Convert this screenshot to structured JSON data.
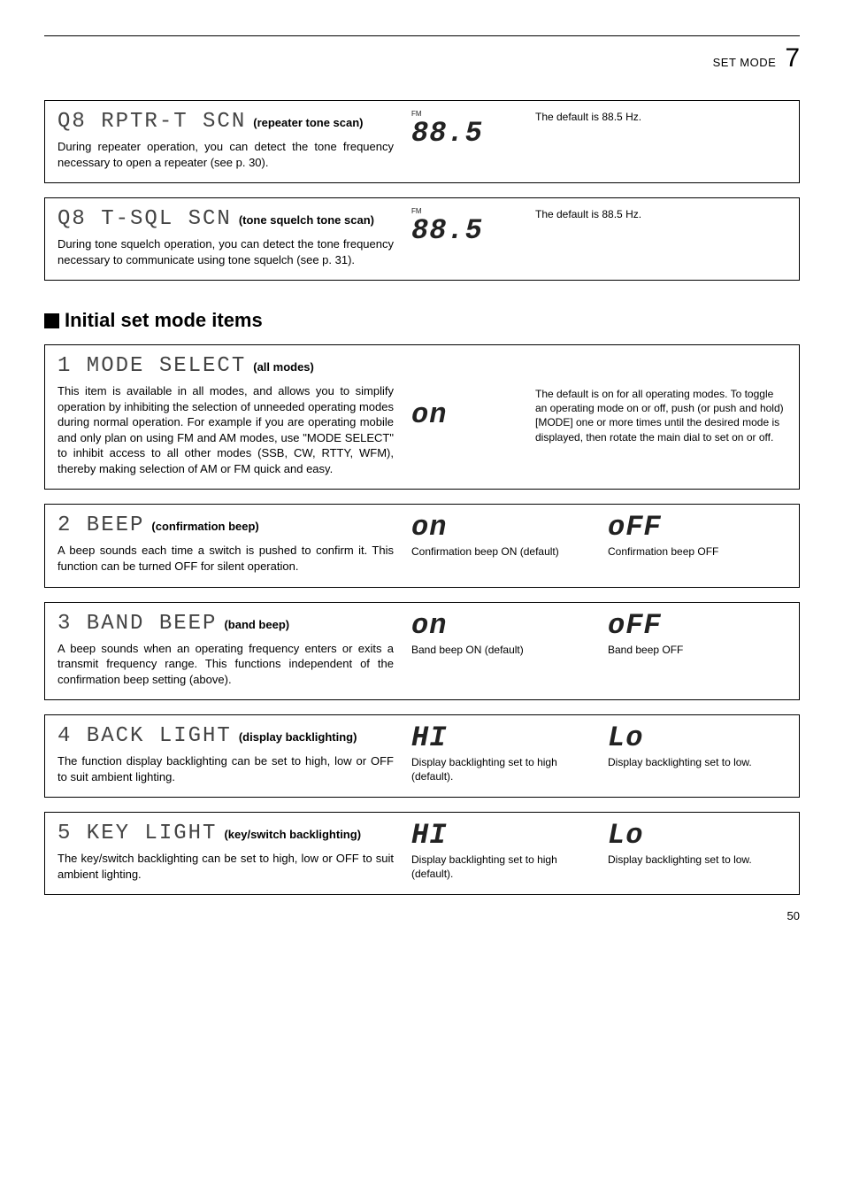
{
  "header": {
    "label": "SET MODE",
    "chapter": "7"
  },
  "section_title": "Initial set mode items",
  "items": [
    {
      "lcd": "Q8 RPTR-T SCN",
      "desc": "(repeater tone scan)",
      "body": "During repeater operation, you can detect the tone frequency necessary to open a repeater (see p. 30).",
      "disp_fm": "FM",
      "disp_value": "88.5",
      "note": "The default is 88.5 Hz."
    },
    {
      "lcd": "Q8 T-SQL SCN",
      "desc": "(tone squelch tone scan)",
      "body": "During tone squelch operation, you can detect the tone frequency necessary to communicate using tone squelch (see p. 31).",
      "disp_fm": "FM",
      "disp_value": "88.5",
      "note": "The default is 88.5 Hz."
    }
  ],
  "initial_items": [
    {
      "lcd": "1 MODE SELECT",
      "desc": "(all modes)",
      "body": "This item is available in all modes, and allows you to simplify operation by inhibiting the selection of unneeded operating modes during normal operation. For example if you are operating mobile and only plan on using FM and AM modes, use \"MODE SELECT\" to inhibit access to all other modes (SSB, CW, RTTY, WFM), thereby making selection of AM or FM quick and easy.",
      "disp1": "on",
      "note": "The default is on for all operating modes. To toggle an operating mode on or off, push (or push and hold) [MODE] one or more times until the desired mode is displayed, then rotate the main dial to set on or off."
    },
    {
      "lcd": "2 BEEP",
      "desc": "(confirmation beep)",
      "body": "A beep sounds each time a switch is pushed to confirm it. This function can be turned OFF for silent operation.",
      "disp1": "on",
      "cap1": "Confirmation beep ON (default)",
      "disp2": "oFF",
      "cap2": "Confirmation beep OFF"
    },
    {
      "lcd": "3 BAND BEEP",
      "desc": "(band beep)",
      "body": "A beep sounds when an operating frequency enters or exits a transmit frequency range. This functions independent of the confirmation beep setting (above).",
      "disp1": "on",
      "cap1": "Band beep ON (default)",
      "disp2": "oFF",
      "cap2": "Band beep OFF"
    },
    {
      "lcd": "4 BACK LIGHT",
      "desc": "(display backlighting)",
      "body": "The function display backlighting can be set to high, low or OFF to suit ambient lighting.",
      "disp1": "HI",
      "cap1": "Display backlighting set to high (default).",
      "disp2": "Lo",
      "cap2": "Display backlighting set to low."
    },
    {
      "lcd": "5 KEY LIGHT",
      "desc": "(key/switch backlighting)",
      "body": "The key/switch backlighting can be set to high, low or OFF to suit ambient lighting.",
      "disp1": "HI",
      "cap1": "Display backlighting set to high (default).",
      "disp2": "Lo",
      "cap2": "Display backlighting set to low."
    }
  ],
  "footer": "50"
}
